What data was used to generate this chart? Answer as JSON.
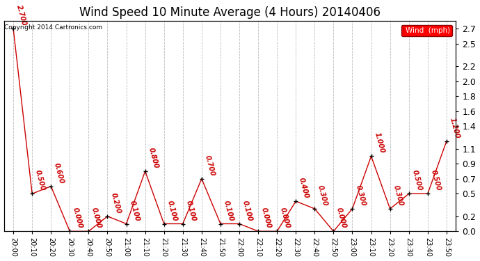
{
  "title": "Wind Speed 10 Minute Average (4 Hours) 20140406",
  "copyright": "Copyright 2014 Cartronics.com",
  "legend_label": "Wind  (mph)",
  "x_labels": [
    "20:00",
    "20:10",
    "20:20",
    "20:30",
    "20:40",
    "20:50",
    "21:00",
    "21:10",
    "21:20",
    "21:30",
    "21:40",
    "21:50",
    "22:00",
    "22:10",
    "22:20",
    "22:30",
    "22:40",
    "22:50",
    "23:00",
    "23:10",
    "23:20",
    "23:30",
    "23:40",
    "23:50"
  ],
  "y_values": [
    2.7,
    0.5,
    0.6,
    0.0,
    0.0,
    0.2,
    0.1,
    0.8,
    0.1,
    0.1,
    0.7,
    0.1,
    0.1,
    0.0,
    0.0,
    0.4,
    0.3,
    0.0,
    0.3,
    1.0,
    0.3,
    0.5,
    0.5,
    1.2
  ],
  "point_labels": [
    "2.700",
    "0.500",
    "0.600",
    "0.000",
    "0.000",
    "0.200",
    "0.100",
    "0.800",
    "0.100",
    "0.100",
    "0.700",
    "0.100",
    "0.100",
    "0.000",
    "0.000",
    "0.400",
    "0.300",
    "0.000",
    "0.300",
    "1.000",
    "0.300",
    "0.500",
    "0.500",
    "1.200"
  ],
  "ylim": [
    0.0,
    2.8
  ],
  "ytick_positions": [
    0.0,
    0.2,
    0.5,
    0.7,
    0.9,
    1.1,
    1.4,
    1.6,
    1.8,
    2.0,
    2.2,
    2.5,
    2.7
  ],
  "ytick_labels": [
    "0.0",
    "0.2",
    "0.5",
    "0.7",
    "0.9",
    "1.1",
    "1.4",
    "1.6",
    "1.8",
    "2.0",
    "2.2",
    "2.5",
    "2.7"
  ],
  "line_color": "#cc0000",
  "label_color": "#cc0000",
  "background_color": "#ffffff",
  "grid_color": "#bbbbbb",
  "title_fontsize": 12,
  "label_fontsize": 7
}
